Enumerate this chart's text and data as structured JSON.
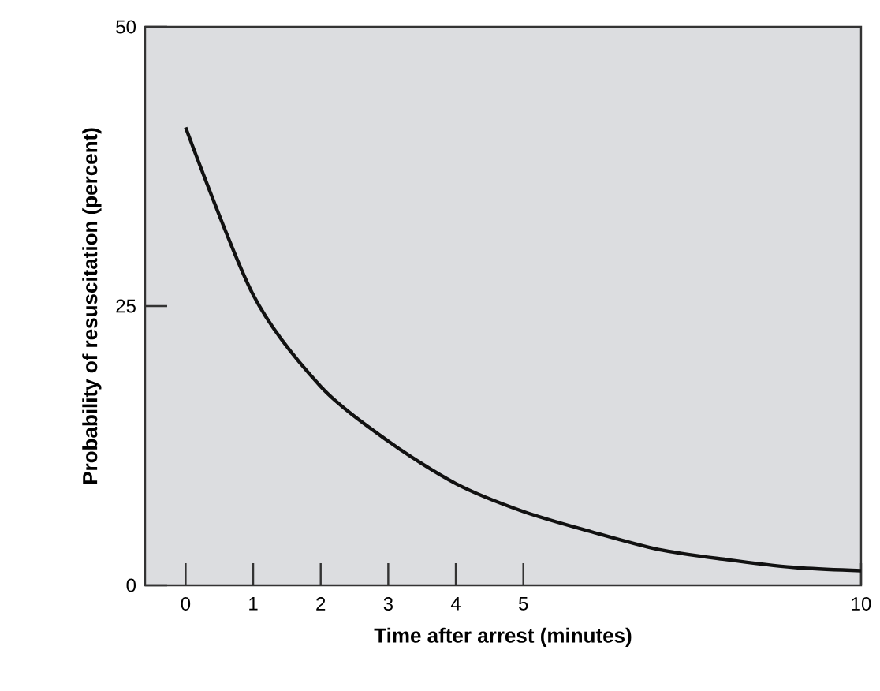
{
  "chart_data": {
    "type": "line",
    "xlabel": "Time after arrest (minutes)",
    "ylabel": "Probability of resuscitation (percent)",
    "x": [
      0,
      1,
      2,
      3,
      4,
      5,
      6,
      7,
      8,
      9,
      10
    ],
    "series": [
      {
        "color": "#111111",
        "values": [
          41,
          26,
          17.8,
          12.9,
          9.1,
          6.6,
          4.8,
          3.2,
          2.3,
          1.6,
          1.3
        ]
      }
    ],
    "xlim": [
      -0.6,
      10
    ],
    "ylim": [
      0,
      50
    ],
    "xticks": [
      0,
      1,
      2,
      3,
      4,
      5,
      10
    ],
    "yticks": [
      0,
      25,
      50
    ],
    "grid": false,
    "marker": "none",
    "line_style": "solid"
  }
}
